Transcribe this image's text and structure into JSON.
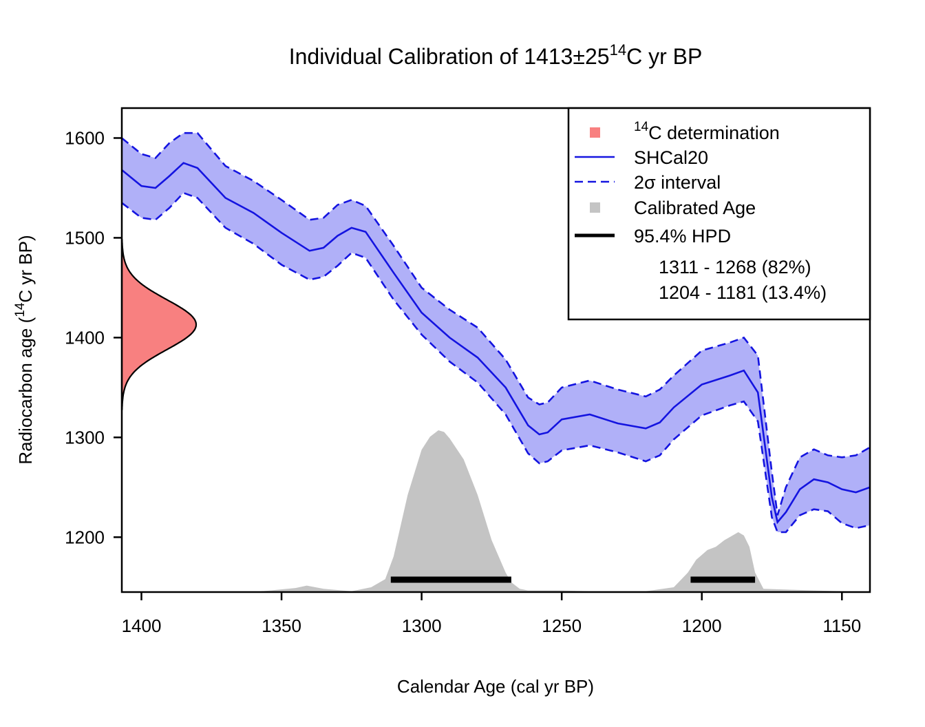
{
  "chart_data": {
    "type": "area",
    "title_main": "Individual Calibration of 1413±25",
    "title_sup": "14",
    "title_tail": "C yr BP",
    "xlabel": "Calendar Age (cal yr BP)",
    "ylabel_pre": "Radiocarbon age (",
    "ylabel_sup": "14",
    "ylabel_post": "C yr BP)",
    "xlim": [
      1407,
      1140
    ],
    "ylim": [
      1145,
      1630
    ],
    "x_ticks": [
      1400,
      1350,
      1300,
      1250,
      1200,
      1150
    ],
    "y_ticks": [
      1600,
      1500,
      1400,
      1300,
      1200
    ],
    "determination": {
      "mean": 1413,
      "sd": 25
    },
    "calibration_curve": {
      "name": "SHCal20",
      "x": [
        1407,
        1400,
        1395,
        1390,
        1385,
        1380,
        1370,
        1360,
        1350,
        1340,
        1335,
        1330,
        1325,
        1320,
        1310,
        1300,
        1290,
        1280,
        1270,
        1262,
        1258,
        1255,
        1250,
        1240,
        1230,
        1220,
        1215,
        1210,
        1200,
        1190,
        1185,
        1180,
        1175,
        1173,
        1170,
        1165,
        1160,
        1155,
        1150,
        1145,
        1140
      ],
      "mean": [
        1568,
        1552,
        1550,
        1562,
        1575,
        1570,
        1540,
        1525,
        1505,
        1487,
        1490,
        1502,
        1510,
        1506,
        1465,
        1425,
        1400,
        1380,
        1350,
        1312,
        1303,
        1305,
        1318,
        1323,
        1314,
        1309,
        1315,
        1330,
        1353,
        1362,
        1367,
        1345,
        1240,
        1215,
        1225,
        1248,
        1258,
        1255,
        1248,
        1245,
        1250
      ],
      "upper": [
        1600,
        1584,
        1580,
        1595,
        1605,
        1605,
        1572,
        1557,
        1538,
        1518,
        1520,
        1533,
        1538,
        1532,
        1492,
        1450,
        1428,
        1410,
        1378,
        1340,
        1333,
        1335,
        1350,
        1357,
        1348,
        1341,
        1348,
        1362,
        1387,
        1395,
        1400,
        1382,
        1265,
        1222,
        1250,
        1280,
        1288,
        1282,
        1280,
        1282,
        1290
      ],
      "lower": [
        1535,
        1520,
        1518,
        1530,
        1545,
        1540,
        1510,
        1494,
        1473,
        1458,
        1461,
        1472,
        1485,
        1480,
        1438,
        1403,
        1376,
        1355,
        1323,
        1284,
        1274,
        1276,
        1287,
        1292,
        1285,
        1276,
        1282,
        1298,
        1322,
        1332,
        1336,
        1316,
        1220,
        1205,
        1205,
        1222,
        1228,
        1226,
        1214,
        1209,
        1212
      ]
    },
    "calibrated_density": {
      "x": [
        1407,
        1360,
        1345,
        1341,
        1335,
        1325,
        1318,
        1313,
        1310,
        1305,
        1300,
        1297,
        1294,
        1292,
        1290,
        1285,
        1280,
        1275,
        1270,
        1268,
        1265,
        1262,
        1250,
        1240,
        1220,
        1210,
        1205,
        1202,
        1198,
        1195,
        1192,
        1189,
        1187,
        1185,
        1183,
        1181,
        1178,
        1140
      ],
      "value": [
        0,
        0,
        0.025,
        0.04,
        0.02,
        0.005,
        0.03,
        0.08,
        0.22,
        0.6,
        0.88,
        0.96,
        1.0,
        0.99,
        0.95,
        0.82,
        0.6,
        0.32,
        0.12,
        0.06,
        0.02,
        0.01,
        0.01,
        0.005,
        0.005,
        0.03,
        0.12,
        0.2,
        0.26,
        0.28,
        0.32,
        0.35,
        0.37,
        0.35,
        0.28,
        0.12,
        0.02,
        0
      ]
    },
    "hpd_intervals": [
      {
        "from": 1311,
        "to": 1268,
        "label": "1311 - 1268 (82%)"
      },
      {
        "from": 1204,
        "to": 1181,
        "label": "1204 - 1181 (13.4%)"
      }
    ],
    "legend": {
      "position": "top-right",
      "items": [
        {
          "pre": "",
          "sup": "14",
          "text": "C determination",
          "color": "#f88080",
          "kind": "square"
        },
        {
          "pre": "",
          "sup": "",
          "text": "SHCal20",
          "color": "#1414e0",
          "kind": "line"
        },
        {
          "pre": "2σ interval",
          "sup": "",
          "text": "",
          "color": "#1414e0",
          "kind": "dashed"
        },
        {
          "pre": "",
          "sup": "",
          "text": "Calibrated Age",
          "color": "#c4c4c4",
          "kind": "square"
        },
        {
          "pre": "",
          "sup": "",
          "text": "95.4% HPD",
          "color": "#000000",
          "kind": "thick"
        }
      ]
    },
    "colors": {
      "band": "#b0b0f8",
      "curve": "#1414e0",
      "determination": "#f88080",
      "calibrated": "#c4c4c4",
      "hpd": "#000000"
    }
  }
}
